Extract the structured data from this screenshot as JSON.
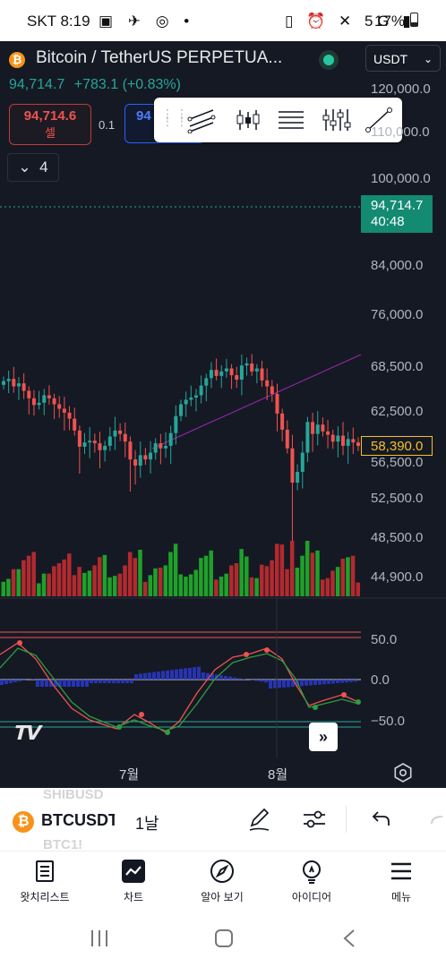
{
  "status_bar": {
    "carrier_time": "SKT 8:19",
    "network": "5G",
    "battery": "17%"
  },
  "chart_header": {
    "title": "Bitcoin / TetherUS PERPETUA...",
    "last_price": "94,714.7",
    "change": "+783.1 (+0.83%)",
    "currency_button": "USDT"
  },
  "trade": {
    "sell_price": "94,714.6",
    "sell_label": "셀",
    "spread": "0.1",
    "buy_price_partial": "94"
  },
  "indicator_collapse": {
    "count": "4"
  },
  "price_axis": {
    "labels": [
      "120,000.0",
      "110,000.0",
      "100,000.0",
      "84,000.0",
      "76,000.0",
      "68,500.0",
      "62,500.0",
      "56,500.0",
      "52,500.0",
      "48,500.0",
      "44,900.0"
    ],
    "current_price_tag": "94,714.7",
    "countdown": "40:48",
    "last_visible_price": "58,390.0"
  },
  "oscillator_axis": {
    "labels": [
      "50.0",
      "0.0",
      "−50.0"
    ]
  },
  "time_axis": {
    "labels": [
      "7월",
      "8월"
    ]
  },
  "toolbar": {
    "symbol_ghost_above": "SHIBUSD",
    "symbol": "BTCUSDT",
    "symbol_ghost_below": "BTC1!",
    "interval": "1날"
  },
  "nav": {
    "items": [
      {
        "label": "왓치리스트",
        "icon": "watchlist-icon"
      },
      {
        "label": "차트",
        "icon": "chart-icon"
      },
      {
        "label": "알아 보기",
        "icon": "compass-icon"
      },
      {
        "label": "아이디어",
        "icon": "bulb-icon"
      },
      {
        "label": "메뉴",
        "icon": "menu-icon"
      }
    ]
  },
  "colors": {
    "background": "#151924",
    "up": "#26a69a",
    "down": "#ef5350",
    "volume_up": "#1fa12a",
    "volume_down": "#b22a2f",
    "accent_tag": "#138a72",
    "last_price_border": "#f5c02b"
  },
  "chart_data": {
    "type": "candlestick",
    "symbol": "BTCUSDT",
    "interval": "1날",
    "x": [
      "7월",
      "8월"
    ],
    "price_range": [
      44900,
      120000
    ],
    "candles_approx": {
      "start_region": 66000,
      "early_july_low": 56500,
      "late_july_high": 69500,
      "august_crash_low": 49500,
      "last_close": 58390
    },
    "trendline": "ascending line from early-July low through late-July high",
    "oscillator": {
      "type": "stochastic",
      "levels": [
        50,
        0,
        -50
      ]
    }
  }
}
